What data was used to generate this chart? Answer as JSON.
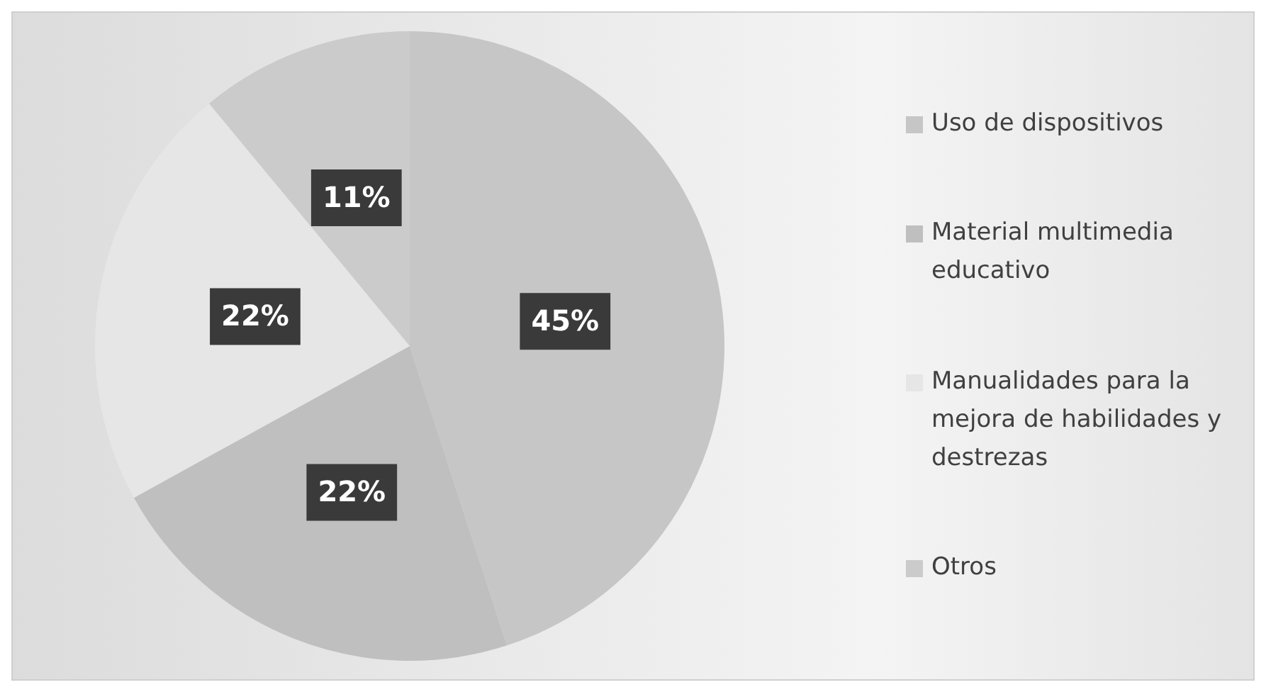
{
  "chart_data": {
    "type": "pie",
    "categories": [
      "Uso de dispositivos",
      "Material multimedia educativo",
      "Manualidades para la mejora de habilidades y destrezas",
      "Otros"
    ],
    "values": [
      45,
      22,
      22,
      11
    ],
    "colors": [
      "#c6c6c6",
      "#bfbfbf",
      "#e6e6e6",
      "#cbcbcb"
    ],
    "value_labels": [
      "45%",
      "22%",
      "22%",
      "11%"
    ],
    "legend": "right"
  }
}
